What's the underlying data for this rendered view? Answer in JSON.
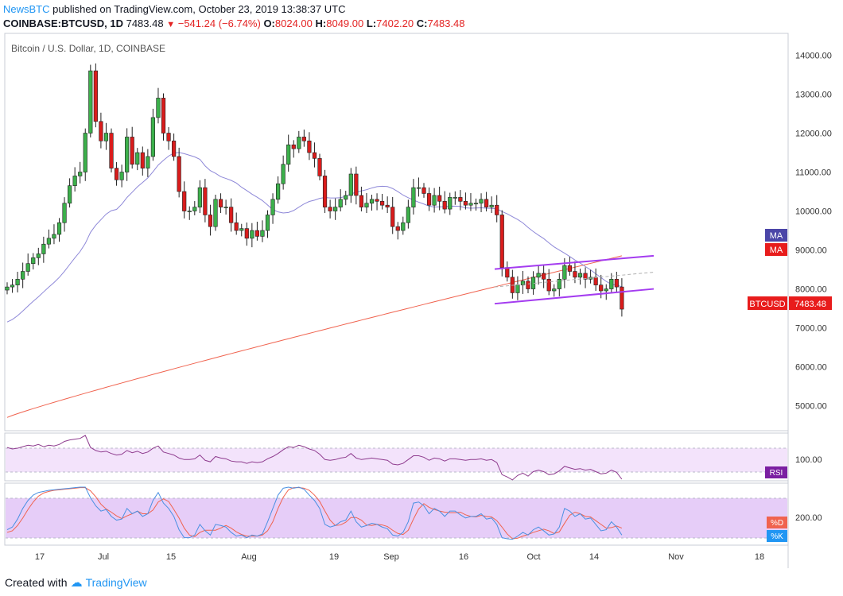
{
  "header": {
    "brand": "NewsBTC",
    "published": "published on TradingView.com, October 23, 2019 13:38:37 UTC",
    "symbol": "COINBASE:BTCUSD, 1D",
    "last": "7483.48",
    "change": "−541.24 (−6.74%)",
    "o_label": "O:",
    "o_value": "8024.00",
    "h_label": "H:",
    "h_value": "8049.00",
    "l_label": "L:",
    "l_value": "7402.20",
    "c_label": "C:",
    "c_value": "7483.48"
  },
  "footer": {
    "created_with": "Created with",
    "brand": "TradingView"
  },
  "colors": {
    "up": "#3cb04b",
    "down": "#d91c1c",
    "ma50": "#8e88d8",
    "ma200": "#f0634f",
    "channel": "#a43cf0",
    "rsi_band": "#f3e3fb",
    "stoch_band": "#e6cdf8",
    "stoch_k": "#4a90e2",
    "stoch_d": "#f0634f",
    "price_label": "#e81c1c",
    "ma_label50": "#4b46a8"
  },
  "chart_data": {
    "type": "candlestick",
    "title": "Bitcoin / U.S. Dollar, 1D, COINBASE",
    "yaxis_ticks": [
      "14000.00",
      "13000.00",
      "12000.00",
      "11000.00",
      "10000.00",
      "9000.00",
      "8000.00",
      "7000.00",
      "6000.00",
      "5000.00"
    ],
    "ylim": [
      4400,
      14500
    ],
    "xaxis_ticks": [
      "17",
      "Jul",
      "15",
      "Aug",
      "19",
      "Sep",
      "16",
      "Oct",
      "14",
      "Nov",
      "18"
    ],
    "last_price_label": "BTCUSD",
    "last_price": "7483.48",
    "ma_label_1": "MA",
    "ma_label_2": "MA",
    "rsi_label": "RSI",
    "rsi_tick": "100.00",
    "stoch_tick": "200.00",
    "stoch_d_label": "%D",
    "stoch_k_label": "%K",
    "ohlc_close": [
      8050,
      8100,
      8250,
      8450,
      8650,
      8800,
      8900,
      9150,
      9300,
      9400,
      9700,
      10200,
      10650,
      10900,
      11000,
      12000,
      13600,
      12300,
      11800,
      12000,
      11100,
      10800,
      11000,
      11900,
      11200,
      11500,
      11100,
      11400,
      12400,
      12900,
      12000,
      11800,
      11400,
      10500,
      10000,
      10000,
      10100,
      10600,
      9900,
      9600,
      10300,
      10100,
      10100,
      9700,
      9500,
      9550,
      9300,
      9500,
      9350,
      9500,
      9900,
      10300,
      10700,
      11200,
      11700,
      11600,
      11900,
      11800,
      11500,
      11350,
      10900,
      10100,
      10000,
      10100,
      10300,
      10400,
      10950,
      10400,
      10100,
      10200,
      10300,
      10250,
      10150,
      10100,
      9600,
      9500,
      9700,
      10100,
      10600,
      10600,
      10450,
      10150,
      10400,
      10250,
      10050,
      10350,
      10350,
      10250,
      10150,
      10200,
      10200,
      10300,
      10100,
      10150,
      9900,
      8550,
      8300,
      7900,
      8100,
      8200,
      8000,
      8300,
      8400,
      8250,
      7950,
      8000,
      8250,
      8600,
      8450,
      8300,
      8400,
      8250,
      8300,
      8100,
      7950,
      8000,
      8250,
      8050,
      7480
    ],
    "rsi_values": [
      72,
      70,
      71,
      73,
      75,
      74,
      76,
      73,
      75,
      74,
      76,
      80,
      82,
      83,
      84,
      88,
      72,
      68,
      66,
      67,
      64,
      62,
      63,
      68,
      65,
      67,
      64,
      66,
      71,
      74,
      66,
      64,
      62,
      58,
      56,
      56,
      57,
      62,
      55,
      53,
      60,
      58,
      57,
      54,
      53,
      53,
      51,
      53,
      52,
      53,
      57,
      60,
      64,
      69,
      73,
      72,
      75,
      73,
      70,
      68,
      63,
      56,
      55,
      56,
      58,
      59,
      64,
      58,
      56,
      57,
      58,
      57,
      56,
      55,
      50,
      49,
      51,
      56,
      61,
      61,
      59,
      55,
      58,
      57,
      54,
      57,
      57,
      56,
      55,
      56,
      56,
      57,
      55,
      56,
      52,
      36,
      33,
      29,
      35,
      38,
      34,
      40,
      42,
      40,
      36,
      37,
      41,
      47,
      45,
      43,
      44,
      42,
      43,
      40,
      37,
      38,
      42,
      39,
      30
    ],
    "stoch_k_values": [
      20,
      25,
      40,
      60,
      75,
      85,
      90,
      92,
      94,
      95,
      96,
      97,
      98,
      99,
      100,
      100,
      80,
      65,
      55,
      58,
      45,
      38,
      40,
      60,
      50,
      55,
      45,
      50,
      75,
      90,
      70,
      60,
      45,
      20,
      5,
      5,
      10,
      30,
      18,
      10,
      30,
      28,
      25,
      15,
      8,
      10,
      5,
      10,
      8,
      12,
      35,
      60,
      85,
      98,
      100,
      98,
      100,
      96,
      85,
      75,
      60,
      30,
      25,
      28,
      35,
      38,
      55,
      35,
      25,
      28,
      32,
      30,
      25,
      22,
      10,
      8,
      15,
      35,
      70,
      72,
      65,
      50,
      60,
      55,
      45,
      55,
      55,
      48,
      42,
      45,
      45,
      50,
      40,
      42,
      30,
      5,
      3,
      2,
      8,
      15,
      10,
      20,
      25,
      18,
      10,
      12,
      25,
      60,
      55,
      45,
      50,
      40,
      42,
      30,
      18,
      20,
      35,
      25,
      10
    ],
    "stoch_d_values": [
      15,
      18,
      28,
      42,
      58,
      72,
      83,
      89,
      92,
      94,
      95,
      96,
      97,
      98,
      99,
      99,
      93,
      82,
      68,
      59,
      53,
      46,
      41,
      46,
      50,
      55,
      50,
      50,
      57,
      72,
      78,
      73,
      58,
      42,
      23,
      10,
      7,
      15,
      19,
      19,
      19,
      23,
      28,
      23,
      16,
      11,
      8,
      8,
      8,
      10,
      18,
      35,
      60,
      81,
      95,
      99,
      99,
      98,
      94,
      85,
      73,
      55,
      38,
      28,
      29,
      34,
      43,
      43,
      38,
      29,
      28,
      30,
      29,
      26,
      19,
      13,
      11,
      19,
      40,
      59,
      69,
      62,
      58,
      55,
      53,
      52,
      52,
      53,
      48,
      45,
      44,
      47,
      45,
      44,
      37,
      25,
      12,
      3,
      4,
      8,
      11,
      15,
      18,
      21,
      18,
      13,
      16,
      32,
      47,
      53,
      50,
      45,
      44,
      37,
      30,
      23,
      24,
      27,
      23
    ]
  }
}
